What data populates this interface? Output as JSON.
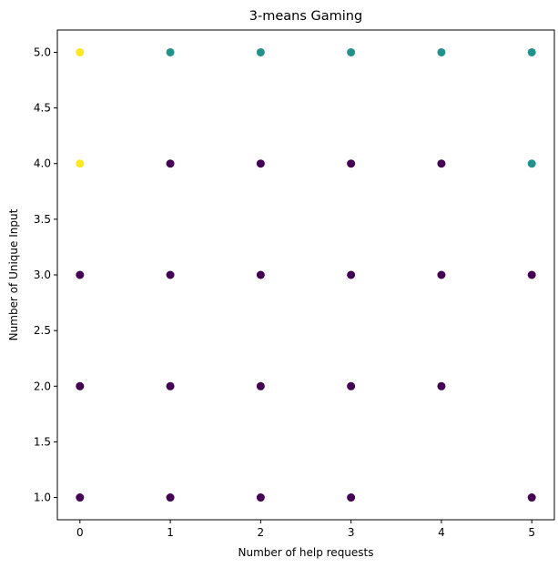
{
  "chart_data": {
    "type": "scatter",
    "title": "3-means Gaming",
    "xlabel": "Number of help requests",
    "ylabel": "Number of Unique Input",
    "xlim": [
      -0.25,
      5.25
    ],
    "ylim": [
      0.8,
      5.2
    ],
    "xticks": [
      "0",
      "1",
      "2",
      "3",
      "4",
      "5"
    ],
    "yticks": [
      "1.0",
      "1.5",
      "2.0",
      "2.5",
      "3.0",
      "3.5",
      "4.0",
      "4.5",
      "5.0"
    ],
    "grid": false,
    "legend": "none",
    "clusters": [
      {
        "color": "#440154",
        "points": [
          [
            0,
            1
          ],
          [
            1,
            1
          ],
          [
            2,
            1
          ],
          [
            3,
            1
          ],
          [
            5,
            1
          ],
          [
            0,
            2
          ],
          [
            1,
            2
          ],
          [
            2,
            2
          ],
          [
            3,
            2
          ],
          [
            4,
            2
          ],
          [
            0,
            3
          ],
          [
            1,
            3
          ],
          [
            2,
            3
          ],
          [
            3,
            3
          ],
          [
            4,
            3
          ],
          [
            5,
            3
          ],
          [
            1,
            4
          ],
          [
            2,
            4
          ],
          [
            3,
            4
          ],
          [
            4,
            4
          ]
        ]
      },
      {
        "color": "#21918c",
        "points": [
          [
            1,
            5
          ],
          [
            2,
            5
          ],
          [
            3,
            5
          ],
          [
            4,
            5
          ],
          [
            5,
            5
          ],
          [
            5,
            4
          ]
        ]
      },
      {
        "color": "#fde725",
        "points": [
          [
            0,
            5
          ],
          [
            0,
            4
          ]
        ]
      }
    ]
  }
}
